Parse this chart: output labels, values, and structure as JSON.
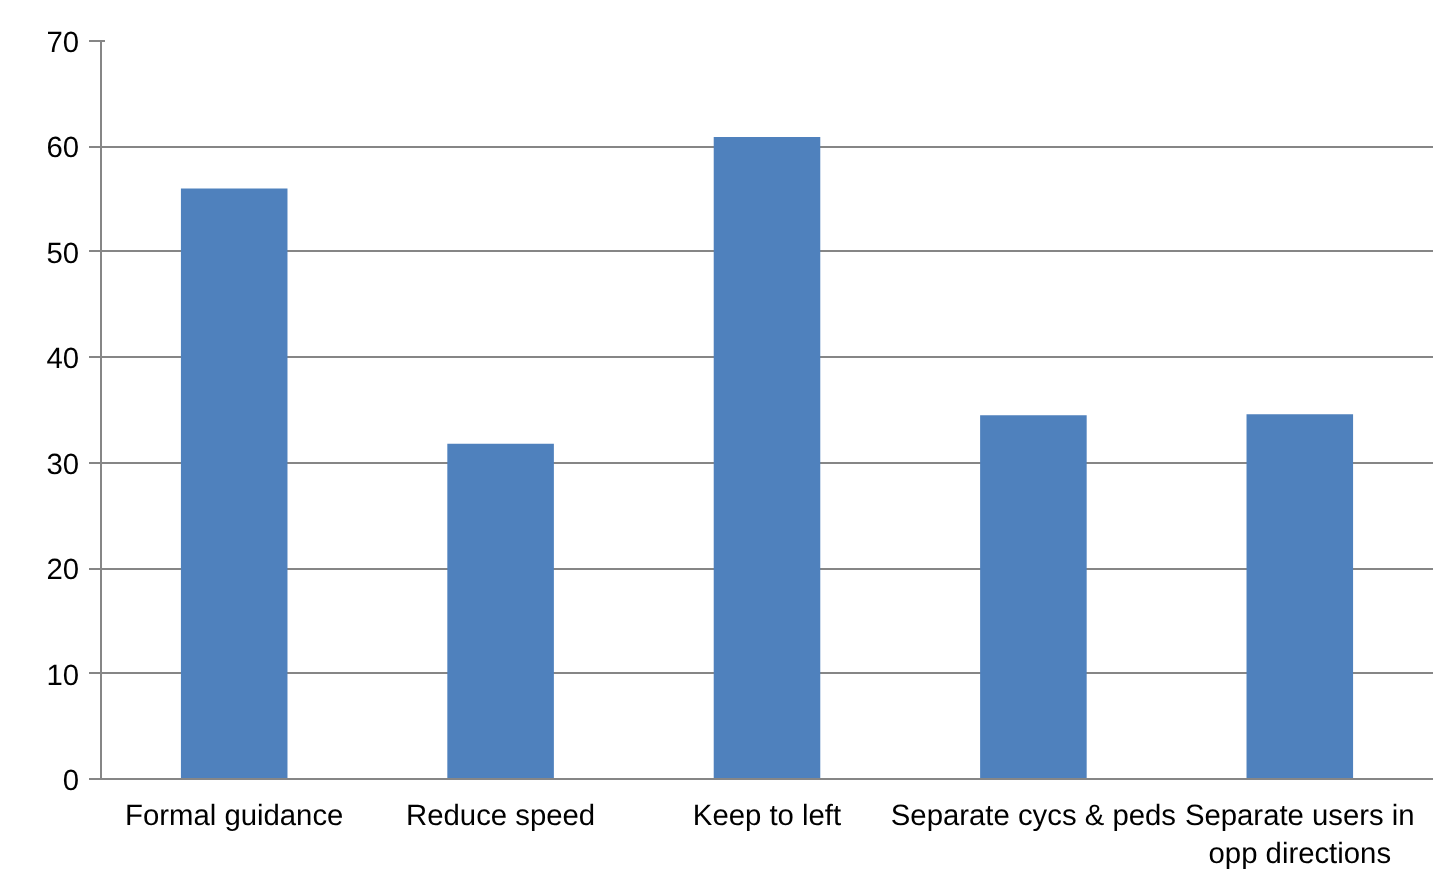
{
  "chart_data": {
    "type": "bar",
    "categories": [
      "Formal guidance",
      "Reduce speed",
      "Keep to left",
      "Separate cycs & peds",
      "Separate users in opp directions"
    ],
    "values": [
      56.0,
      31.8,
      60.9,
      34.5,
      34.6
    ],
    "color": "#4f81bd",
    "ylim": [
      0,
      70
    ],
    "yticks": [
      0,
      10,
      20,
      30,
      40,
      50,
      60,
      70
    ],
    "grid": "y"
  }
}
